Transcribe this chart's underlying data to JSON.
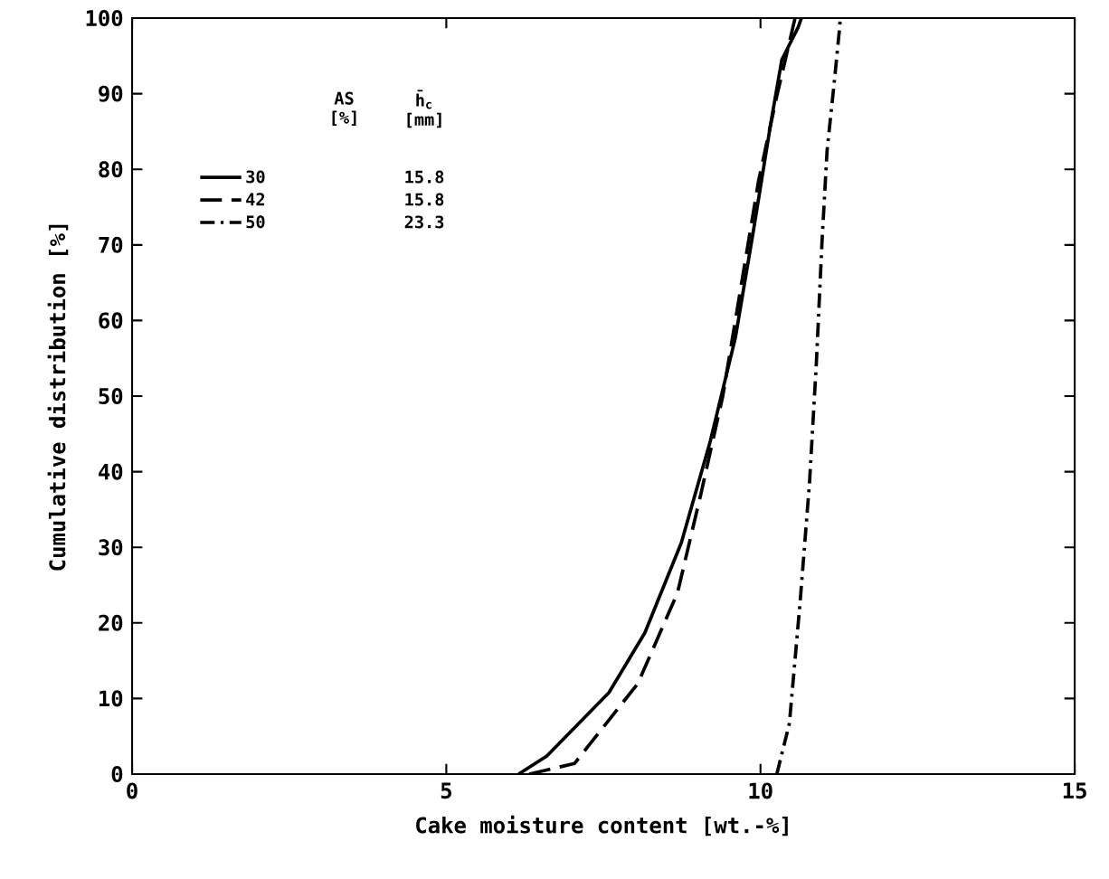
{
  "chart_data": {
    "type": "line",
    "xlabel": "Cake moisture content [wt.-%]",
    "ylabel": "Cumulative distribution [%]",
    "xlim": [
      0,
      15
    ],
    "xticks": [
      0,
      5,
      10,
      15
    ],
    "ylim": [
      0,
      100
    ],
    "yticks": [
      0,
      10,
      20,
      30,
      40,
      50,
      60,
      70,
      80,
      90,
      100
    ],
    "grid": false,
    "legend": "top left",
    "legend_title": "AS [%]",
    "annotations": [
      "h̄$_{c}$ [mm]",
      "15.8",
      "15.8",
      "23.3"
    ],
    "series": [
      {
        "name": "30",
        "color": "#000000",
        "line_style": "solid",
        "x": [
          6.15,
          6.6,
          7.59,
          8.16,
          8.74,
          9.2,
          9.6,
          9.89,
          10.17,
          10.34,
          10.6,
          10.65
        ],
        "values": [
          0,
          2.4,
          10.8,
          18.7,
          30.6,
          44,
          57.7,
          72,
          86.4,
          94.5,
          98.8,
          100
        ]
      },
      {
        "name": "42",
        "color": "#000000",
        "line_style": "dashed",
        "x": [
          6.32,
          7.04,
          8.05,
          8.68,
          9.05,
          9.4,
          9.68,
          9.97,
          10.26,
          10.55
        ],
        "values": [
          0,
          1.4,
          12,
          24,
          37,
          50,
          64,
          78.5,
          89.7,
          100
        ]
      },
      {
        "name": "50",
        "color": "#000000",
        "line_style": "dashdotted",
        "x": [
          10.26,
          10.46,
          10.63,
          10.78,
          10.89,
          10.98,
          11.06,
          11.18,
          11.26,
          11.27
        ],
        "values": [
          0,
          6.7,
          22.7,
          38.5,
          54.5,
          70.6,
          82.5,
          92,
          98.8,
          100
        ]
      }
    ]
  }
}
